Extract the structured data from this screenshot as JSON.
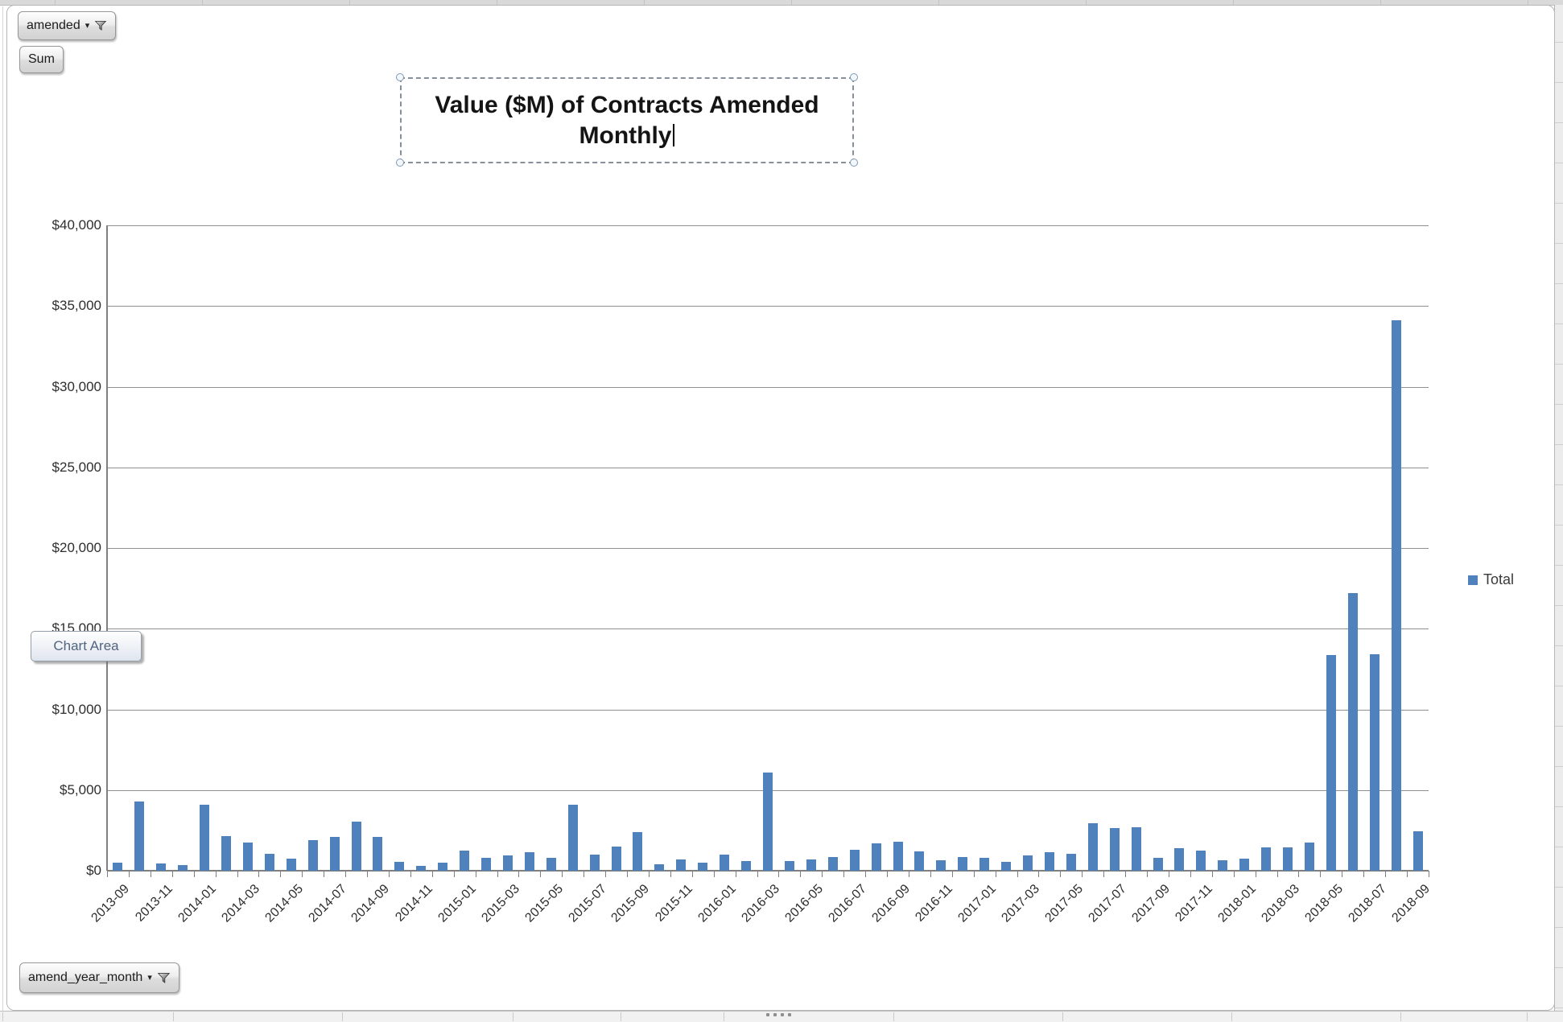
{
  "filters": {
    "amended": {
      "label": "amended"
    },
    "sum": {
      "label": "Sum"
    },
    "amend_year_month": {
      "label": "amend_year_month"
    }
  },
  "tooltip": {
    "text": "Chart Area"
  },
  "legend": {
    "label": "Total"
  },
  "chart_data": {
    "type": "bar",
    "title": "Value ($M) of Contracts Amended Monthly",
    "title_lines": [
      "Value ($M) of Contracts Amended",
      "Monthly"
    ],
    "xlabel": "",
    "ylabel": "",
    "ylim": [
      0,
      40000
    ],
    "ytick_step": 5000,
    "ytick_labels": [
      "$0",
      "$5,000",
      "$10,000",
      "$15,000",
      "$20,000",
      "$25,000",
      "$30,000",
      "$35,000",
      "$40,000"
    ],
    "xtick_label_every": 2,
    "grid": true,
    "legend_position": "right",
    "series_name": "Total",
    "bar_color": "#4F81BD",
    "categories": [
      "2013-09",
      "2013-10",
      "2013-11",
      "2013-12",
      "2014-01",
      "2014-02",
      "2014-03",
      "2014-04",
      "2014-05",
      "2014-06",
      "2014-07",
      "2014-08",
      "2014-09",
      "2014-10",
      "2014-11",
      "2014-12",
      "2015-01",
      "2015-02",
      "2015-03",
      "2015-04",
      "2015-05",
      "2015-06",
      "2015-07",
      "2015-08",
      "2015-09",
      "2015-10",
      "2015-11",
      "2015-12",
      "2016-01",
      "2016-02",
      "2016-03",
      "2016-04",
      "2016-05",
      "2016-06",
      "2016-07",
      "2016-08",
      "2016-09",
      "2016-10",
      "2016-11",
      "2016-12",
      "2017-01",
      "2017-02",
      "2017-03",
      "2017-04",
      "2017-05",
      "2017-06",
      "2017-07",
      "2017-08",
      "2017-09",
      "2017-10",
      "2017-11",
      "2017-12",
      "2018-01",
      "2018-02",
      "2018-03",
      "2018-04",
      "2018-05",
      "2018-06",
      "2018-07",
      "2018-08",
      "2018-09"
    ],
    "values": [
      500,
      4300,
      450,
      330,
      4100,
      2150,
      1730,
      1030,
      750,
      1920,
      2070,
      3030,
      2100,
      530,
      320,
      520,
      1250,
      800,
      950,
      1170,
      800,
      4100,
      980,
      1480,
      2380,
      400,
      720,
      480,
      1000,
      580,
      6100,
      580,
      700,
      870,
      1280,
      1700,
      1780,
      1200,
      670,
      870,
      780,
      570,
      970,
      1170,
      1050,
      2950,
      2620,
      2680,
      800,
      1400,
      1250,
      650,
      750,
      1450,
      1450,
      1750,
      13350,
      17200,
      13400,
      34100,
      2450
    ]
  }
}
